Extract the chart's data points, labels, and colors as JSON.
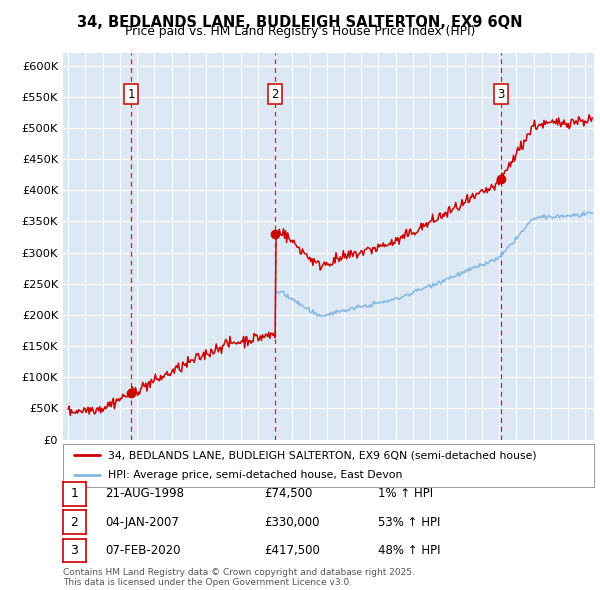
{
  "title": "34, BEDLANDS LANE, BUDLEIGH SALTERTON, EX9 6QN",
  "subtitle": "Price paid vs. HM Land Registry's House Price Index (HPI)",
  "bg_color": "#dde8f5",
  "red_line_color": "#cc0000",
  "blue_line_color": "#85b8e0",
  "sale_marker_color": "#cc0000",
  "vline_color": "#cc0000",
  "ylim": [
    0,
    620000
  ],
  "ytick_values": [
    0,
    50000,
    100000,
    150000,
    200000,
    250000,
    300000,
    350000,
    400000,
    450000,
    500000,
    550000,
    600000
  ],
  "ytick_labels": [
    "£0",
    "£50K",
    "£100K",
    "£150K",
    "£200K",
    "£250K",
    "£300K",
    "£350K",
    "£400K",
    "£450K",
    "£500K",
    "£550K",
    "£600K"
  ],
  "xlim_start": 1994.7,
  "xlim_end": 2025.5,
  "sales": [
    {
      "num": 1,
      "year": 1998.64,
      "price": 74500,
      "label": "21-AUG-1998",
      "pct": "1%",
      "vline_x": 1998.64
    },
    {
      "num": 2,
      "year": 2007.01,
      "price": 330000,
      "label": "04-JAN-2007",
      "pct": "53%",
      "vline_x": 2007.01
    },
    {
      "num": 3,
      "year": 2020.09,
      "price": 417500,
      "label": "07-FEB-2020",
      "pct": "48%",
      "vline_x": 2020.09
    }
  ],
  "legend_red_label": "34, BEDLANDS LANE, BUDLEIGH SALTERTON, EX9 6QN (semi-detached house)",
  "legend_blue_label": "HPI: Average price, semi-detached house, East Devon",
  "footnote": "Contains HM Land Registry data © Crown copyright and database right 2025.\nThis data is licensed under the Open Government Licence v3.0.",
  "table_rows": [
    {
      "num": 1,
      "date": "21-AUG-1998",
      "price": "£74,500",
      "change": "1% ↑ HPI"
    },
    {
      "num": 2,
      "date": "04-JAN-2007",
      "price": "£330,000",
      "change": "53% ↑ HPI"
    },
    {
      "num": 3,
      "date": "07-FEB-2020",
      "price": "£417,500",
      "change": "48% ↑ HPI"
    }
  ]
}
